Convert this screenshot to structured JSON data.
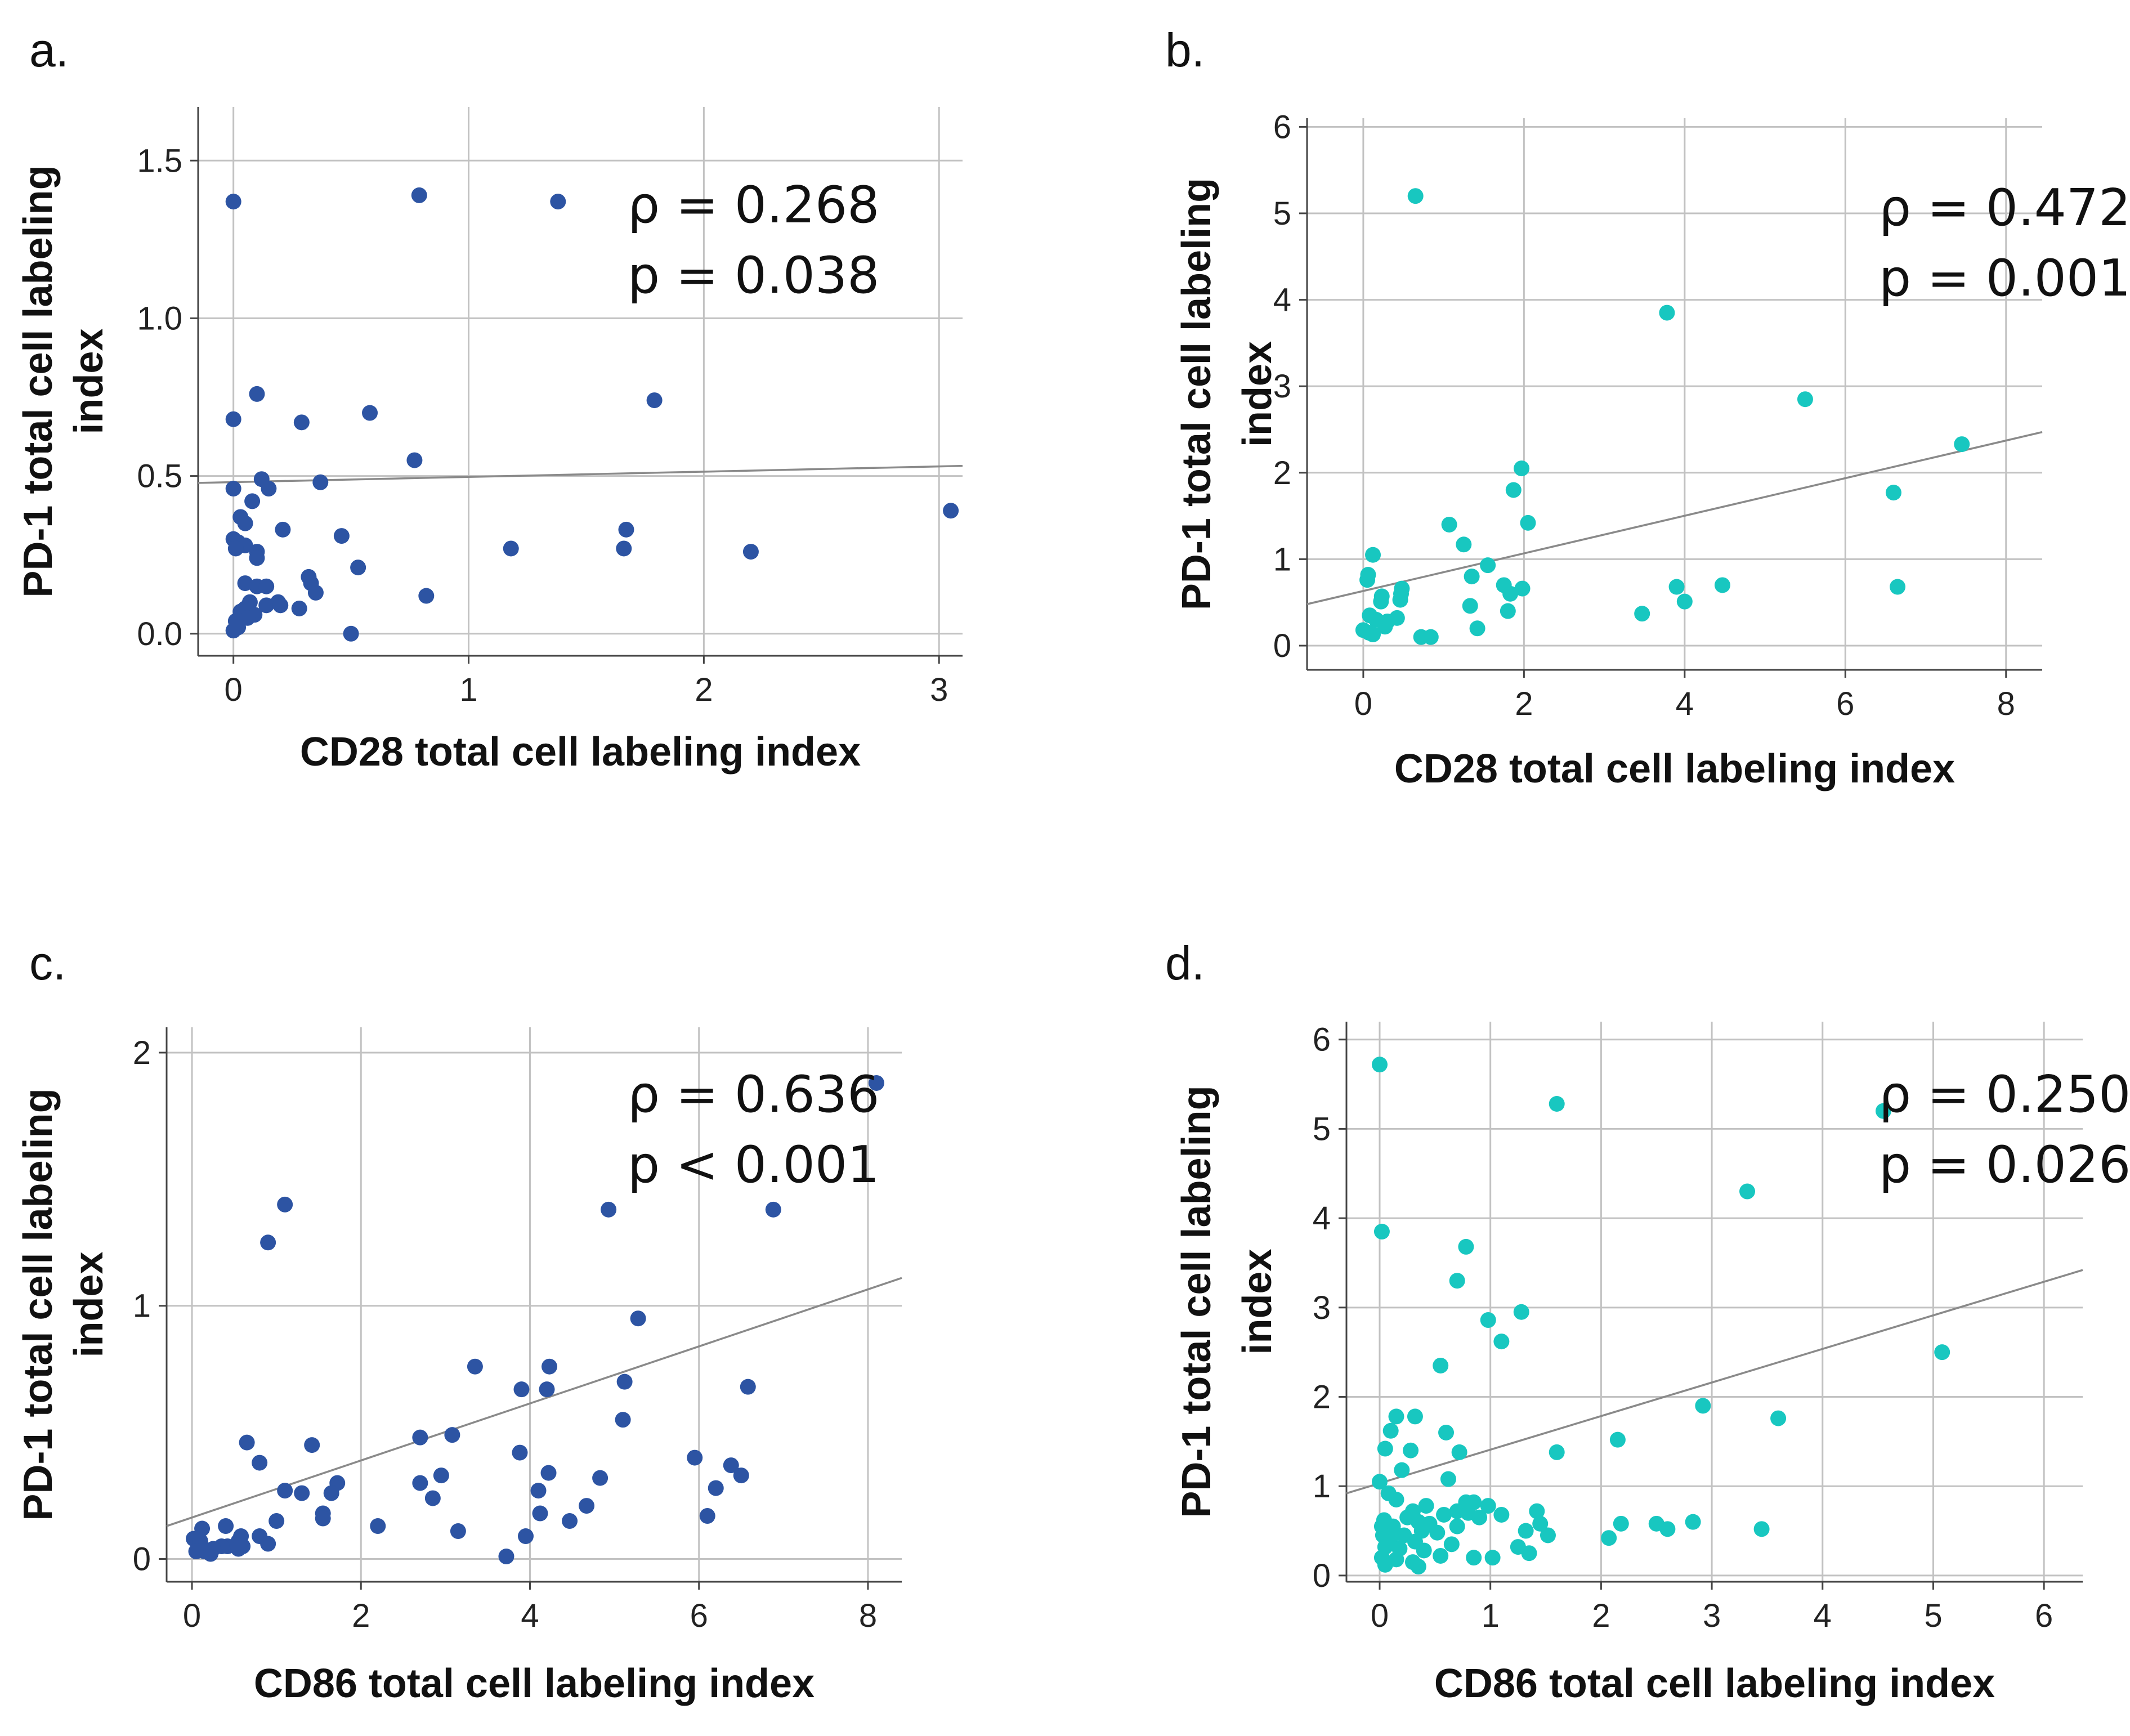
{
  "chart_data": [
    {
      "type": "scatter",
      "panel": "a.",
      "xlabel": "CD28 total cell labeling index",
      "ylabel_lines": [
        "PD-1 total cell labeling",
        "index"
      ],
      "xlim": [
        -0.15,
        3.1
      ],
      "ylim": [
        -0.07,
        1.67
      ],
      "xticks": [
        0,
        1,
        2,
        3
      ],
      "yticks": [
        0.0,
        0.5,
        1.0,
        1.5
      ],
      "ytick_labels": [
        "0.0",
        "0.5",
        "1.0",
        "1.5"
      ],
      "color": "#2d54a3",
      "stats": [
        "ρ = 0.268",
        "p = 0.038"
      ],
      "fit": {
        "x": [
          -0.15,
          3.1
        ],
        "y": [
          0.478,
          0.532
        ]
      },
      "points": [
        {
          "x": 0.0,
          "y": 1.37
        },
        {
          "x": 0.79,
          "y": 1.39
        },
        {
          "x": 1.38,
          "y": 1.37
        },
        {
          "x": 0.1,
          "y": 0.76
        },
        {
          "x": 1.79,
          "y": 0.74
        },
        {
          "x": 0.58,
          "y": 0.7
        },
        {
          "x": 0.0,
          "y": 0.68
        },
        {
          "x": 0.29,
          "y": 0.67
        },
        {
          "x": 0.77,
          "y": 0.55
        },
        {
          "x": 0.12,
          "y": 0.49
        },
        {
          "x": 0.37,
          "y": 0.48
        },
        {
          "x": 0.15,
          "y": 0.46
        },
        {
          "x": 0.0,
          "y": 0.46
        },
        {
          "x": 0.08,
          "y": 0.42
        },
        {
          "x": 3.05,
          "y": 0.39
        },
        {
          "x": 0.03,
          "y": 0.37
        },
        {
          "x": 0.05,
          "y": 0.35
        },
        {
          "x": 0.21,
          "y": 0.33
        },
        {
          "x": 1.67,
          "y": 0.33
        },
        {
          "x": 0.46,
          "y": 0.31
        },
        {
          "x": 0.0,
          "y": 0.3
        },
        {
          "x": 0.02,
          "y": 0.29
        },
        {
          "x": 0.05,
          "y": 0.28
        },
        {
          "x": 0.01,
          "y": 0.27
        },
        {
          "x": 1.18,
          "y": 0.27
        },
        {
          "x": 1.66,
          "y": 0.27
        },
        {
          "x": 0.1,
          "y": 0.26
        },
        {
          "x": 2.2,
          "y": 0.26
        },
        {
          "x": 0.1,
          "y": 0.24
        },
        {
          "x": 0.53,
          "y": 0.21
        },
        {
          "x": 0.32,
          "y": 0.18
        },
        {
          "x": 0.33,
          "y": 0.16
        },
        {
          "x": 0.05,
          "y": 0.16
        },
        {
          "x": 0.1,
          "y": 0.15
        },
        {
          "x": 0.14,
          "y": 0.15
        },
        {
          "x": 0.35,
          "y": 0.13
        },
        {
          "x": 0.82,
          "y": 0.12
        },
        {
          "x": 0.07,
          "y": 0.1
        },
        {
          "x": 0.19,
          "y": 0.1
        },
        {
          "x": 0.14,
          "y": 0.09
        },
        {
          "x": 0.2,
          "y": 0.09
        },
        {
          "x": 0.28,
          "y": 0.08
        },
        {
          "x": 0.05,
          "y": 0.08
        },
        {
          "x": 0.03,
          "y": 0.07
        },
        {
          "x": 0.09,
          "y": 0.06
        },
        {
          "x": 0.06,
          "y": 0.05
        },
        {
          "x": 0.01,
          "y": 0.04
        },
        {
          "x": 0.02,
          "y": 0.02
        },
        {
          "x": 0.0,
          "y": 0.01
        },
        {
          "x": 0.5,
          "y": 0.0
        }
      ]
    },
    {
      "type": "scatter",
      "panel": "b.",
      "xlabel": "CD28 total cell labeling index",
      "ylabel_lines": [
        "PD-1 total cell labeling",
        "index"
      ],
      "xlim": [
        -0.7,
        8.45
      ],
      "ylim": [
        -0.28,
        6.1
      ],
      "xticks": [
        0,
        2,
        4,
        6,
        8
      ],
      "yticks": [
        0,
        1,
        2,
        3,
        4,
        5,
        6
      ],
      "ytick_labels": [
        "0",
        "1",
        "2",
        "3",
        "4",
        "5",
        "6"
      ],
      "color": "#18c7c0",
      "stats": [
        "ρ = 0.472",
        "p = 0.001"
      ],
      "fit": {
        "x": [
          -0.7,
          8.45
        ],
        "y": [
          0.48,
          2.47
        ]
      },
      "points": [
        {
          "x": 0.65,
          "y": 5.2
        },
        {
          "x": 3.78,
          "y": 3.85
        },
        {
          "x": 5.5,
          "y": 2.85
        },
        {
          "x": 7.45,
          "y": 2.33
        },
        {
          "x": 1.97,
          "y": 2.05
        },
        {
          "x": 1.87,
          "y": 1.8
        },
        {
          "x": 6.6,
          "y": 1.77
        },
        {
          "x": 2.05,
          "y": 1.42
        },
        {
          "x": 1.07,
          "y": 1.4
        },
        {
          "x": 1.25,
          "y": 1.17
        },
        {
          "x": 0.12,
          "y": 1.05
        },
        {
          "x": 1.55,
          "y": 0.93
        },
        {
          "x": 0.06,
          "y": 0.82
        },
        {
          "x": 0.05,
          "y": 0.76
        },
        {
          "x": 1.35,
          "y": 0.8
        },
        {
          "x": 4.47,
          "y": 0.7
        },
        {
          "x": 1.75,
          "y": 0.7
        },
        {
          "x": 3.9,
          "y": 0.68
        },
        {
          "x": 6.65,
          "y": 0.68
        },
        {
          "x": 0.48,
          "y": 0.66
        },
        {
          "x": 1.98,
          "y": 0.66
        },
        {
          "x": 0.47,
          "y": 0.6
        },
        {
          "x": 1.83,
          "y": 0.6
        },
        {
          "x": 0.23,
          "y": 0.57
        },
        {
          "x": 0.46,
          "y": 0.53
        },
        {
          "x": 0.22,
          "y": 0.51
        },
        {
          "x": 4.0,
          "y": 0.51
        },
        {
          "x": 1.33,
          "y": 0.46
        },
        {
          "x": 1.8,
          "y": 0.4
        },
        {
          "x": 3.47,
          "y": 0.37
        },
        {
          "x": 0.08,
          "y": 0.35
        },
        {
          "x": 0.42,
          "y": 0.32
        },
        {
          "x": 0.16,
          "y": 0.3
        },
        {
          "x": 0.3,
          "y": 0.28
        },
        {
          "x": 0.27,
          "y": 0.22
        },
        {
          "x": 1.42,
          "y": 0.2
        },
        {
          "x": 0.0,
          "y": 0.18
        },
        {
          "x": 0.07,
          "y": 0.15
        },
        {
          "x": 0.12,
          "y": 0.13
        },
        {
          "x": 0.72,
          "y": 0.1
        },
        {
          "x": 0.84,
          "y": 0.1
        }
      ]
    },
    {
      "type": "scatter",
      "panel": "c.",
      "xlabel": "CD86 total cell labeling index",
      "ylabel_lines": [
        "PD-1 total cell labeling",
        "index"
      ],
      "xlim": [
        -0.3,
        8.4
      ],
      "ylim": [
        -0.09,
        2.1
      ],
      "xticks": [
        0,
        2,
        4,
        6,
        8
      ],
      "yticks": [
        0,
        1,
        2
      ],
      "ytick_labels": [
        "0",
        "1",
        "2"
      ],
      "color": "#2d54a3",
      "stats": [
        "ρ = 0.636",
        "p < 0.001"
      ],
      "fit": {
        "x": [
          -0.3,
          8.4
        ],
        "y": [
          0.13,
          1.11
        ]
      },
      "points": [
        {
          "x": 8.1,
          "y": 1.88
        },
        {
          "x": 1.1,
          "y": 1.4
        },
        {
          "x": 4.93,
          "y": 1.38
        },
        {
          "x": 6.88,
          "y": 1.38
        },
        {
          "x": 0.9,
          "y": 1.25
        },
        {
          "x": 5.28,
          "y": 0.95
        },
        {
          "x": 3.35,
          "y": 0.76
        },
        {
          "x": 4.23,
          "y": 0.76
        },
        {
          "x": 5.12,
          "y": 0.7
        },
        {
          "x": 3.9,
          "y": 0.67
        },
        {
          "x": 4.2,
          "y": 0.67
        },
        {
          "x": 6.58,
          "y": 0.68
        },
        {
          "x": 5.1,
          "y": 0.55
        },
        {
          "x": 3.08,
          "y": 0.49
        },
        {
          "x": 2.7,
          "y": 0.48
        },
        {
          "x": 0.65,
          "y": 0.46
        },
        {
          "x": 1.42,
          "y": 0.45
        },
        {
          "x": 3.88,
          "y": 0.42
        },
        {
          "x": 5.95,
          "y": 0.4
        },
        {
          "x": 0.8,
          "y": 0.38
        },
        {
          "x": 6.38,
          "y": 0.37
        },
        {
          "x": 4.22,
          "y": 0.34
        },
        {
          "x": 6.5,
          "y": 0.33
        },
        {
          "x": 2.95,
          "y": 0.33
        },
        {
          "x": 4.83,
          "y": 0.32
        },
        {
          "x": 1.72,
          "y": 0.3
        },
        {
          "x": 2.7,
          "y": 0.3
        },
        {
          "x": 6.2,
          "y": 0.28
        },
        {
          "x": 1.1,
          "y": 0.27
        },
        {
          "x": 1.3,
          "y": 0.26
        },
        {
          "x": 4.1,
          "y": 0.27
        },
        {
          "x": 1.65,
          "y": 0.26
        },
        {
          "x": 2.85,
          "y": 0.24
        },
        {
          "x": 4.67,
          "y": 0.21
        },
        {
          "x": 1.55,
          "y": 0.18
        },
        {
          "x": 4.12,
          "y": 0.18
        },
        {
          "x": 6.1,
          "y": 0.17
        },
        {
          "x": 1.55,
          "y": 0.16
        },
        {
          "x": 1.0,
          "y": 0.15
        },
        {
          "x": 4.47,
          "y": 0.15
        },
        {
          "x": 0.4,
          "y": 0.13
        },
        {
          "x": 2.2,
          "y": 0.13
        },
        {
          "x": 0.12,
          "y": 0.12
        },
        {
          "x": 3.15,
          "y": 0.11
        },
        {
          "x": 0.58,
          "y": 0.09
        },
        {
          "x": 3.95,
          "y": 0.09
        },
        {
          "x": 0.8,
          "y": 0.09
        },
        {
          "x": 0.02,
          "y": 0.08
        },
        {
          "x": 0.55,
          "y": 0.07
        },
        {
          "x": 0.1,
          "y": 0.07
        },
        {
          "x": 0.9,
          "y": 0.06
        },
        {
          "x": 0.42,
          "y": 0.05
        },
        {
          "x": 0.6,
          "y": 0.05
        },
        {
          "x": 0.35,
          "y": 0.05
        },
        {
          "x": 0.25,
          "y": 0.04
        },
        {
          "x": 0.55,
          "y": 0.04
        },
        {
          "x": 0.15,
          "y": 0.03
        },
        {
          "x": 0.05,
          "y": 0.03
        },
        {
          "x": 0.22,
          "y": 0.02
        },
        {
          "x": 3.72,
          "y": 0.01
        }
      ]
    },
    {
      "type": "scatter",
      "panel": "d.",
      "xlabel": "CD86 total cell labeling index",
      "ylabel_lines": [
        "PD-1 total cell labeling",
        "index"
      ],
      "xlim": [
        -0.3,
        6.35
      ],
      "ylim": [
        -0.07,
        6.2
      ],
      "xticks": [
        0,
        1,
        2,
        3,
        4,
        5,
        6
      ],
      "yticks": [
        0,
        1,
        2,
        3,
        4,
        5,
        6
      ],
      "ytick_labels": [
        "0",
        "1",
        "2",
        "3",
        "4",
        "5",
        "6"
      ],
      "color": "#18c7c0",
      "stats": [
        "ρ = 0.250",
        "p = 0.026"
      ],
      "fit": {
        "x": [
          -0.3,
          6.35
        ],
        "y": [
          0.92,
          3.42
        ]
      },
      "points": [
        {
          "x": 0.0,
          "y": 5.72
        },
        {
          "x": 1.6,
          "y": 5.28
        },
        {
          "x": 4.55,
          "y": 5.2
        },
        {
          "x": 3.32,
          "y": 4.3
        },
        {
          "x": 0.02,
          "y": 3.85
        },
        {
          "x": 0.78,
          "y": 3.68
        },
        {
          "x": 0.7,
          "y": 3.3
        },
        {
          "x": 1.28,
          "y": 2.95
        },
        {
          "x": 0.98,
          "y": 2.86
        },
        {
          "x": 1.1,
          "y": 2.62
        },
        {
          "x": 5.08,
          "y": 2.5
        },
        {
          "x": 0.55,
          "y": 2.35
        },
        {
          "x": 2.92,
          "y": 1.9
        },
        {
          "x": 0.15,
          "y": 1.78
        },
        {
          "x": 0.32,
          "y": 1.78
        },
        {
          "x": 3.6,
          "y": 1.76
        },
        {
          "x": 0.1,
          "y": 1.62
        },
        {
          "x": 0.6,
          "y": 1.6
        },
        {
          "x": 2.15,
          "y": 1.52
        },
        {
          "x": 0.05,
          "y": 1.42
        },
        {
          "x": 0.28,
          "y": 1.4
        },
        {
          "x": 0.72,
          "y": 1.38
        },
        {
          "x": 1.6,
          "y": 1.38
        },
        {
          "x": 0.2,
          "y": 1.18
        },
        {
          "x": 0.62,
          "y": 1.08
        },
        {
          "x": 0.0,
          "y": 1.05
        },
        {
          "x": 0.08,
          "y": 0.92
        },
        {
          "x": 0.15,
          "y": 0.85
        },
        {
          "x": 0.42,
          "y": 0.78
        },
        {
          "x": 0.78,
          "y": 0.82
        },
        {
          "x": 0.85,
          "y": 0.82
        },
        {
          "x": 0.98,
          "y": 0.78
        },
        {
          "x": 0.7,
          "y": 0.72
        },
        {
          "x": 0.3,
          "y": 0.72
        },
        {
          "x": 1.42,
          "y": 0.72
        },
        {
          "x": 0.8,
          "y": 0.7
        },
        {
          "x": 0.58,
          "y": 0.68
        },
        {
          "x": 1.1,
          "y": 0.68
        },
        {
          "x": 0.25,
          "y": 0.65
        },
        {
          "x": 0.9,
          "y": 0.65
        },
        {
          "x": 0.04,
          "y": 0.62
        },
        {
          "x": 0.35,
          "y": 0.6
        },
        {
          "x": 2.83,
          "y": 0.6
        },
        {
          "x": 0.45,
          "y": 0.58
        },
        {
          "x": 1.45,
          "y": 0.58
        },
        {
          "x": 2.18,
          "y": 0.58
        },
        {
          "x": 2.5,
          "y": 0.58
        },
        {
          "x": 0.02,
          "y": 0.55
        },
        {
          "x": 0.12,
          "y": 0.55
        },
        {
          "x": 0.7,
          "y": 0.55
        },
        {
          "x": 2.6,
          "y": 0.52
        },
        {
          "x": 0.38,
          "y": 0.5
        },
        {
          "x": 3.45,
          "y": 0.52
        },
        {
          "x": 0.52,
          "y": 0.48
        },
        {
          "x": 1.32,
          "y": 0.5
        },
        {
          "x": 0.03,
          "y": 0.45
        },
        {
          "x": 0.22,
          "y": 0.45
        },
        {
          "x": 1.52,
          "y": 0.45
        },
        {
          "x": 0.1,
          "y": 0.42
        },
        {
          "x": 2.07,
          "y": 0.42
        },
        {
          "x": 0.32,
          "y": 0.38
        },
        {
          "x": 0.65,
          "y": 0.35
        },
        {
          "x": 0.05,
          "y": 0.32
        },
        {
          "x": 0.18,
          "y": 0.3
        },
        {
          "x": 1.25,
          "y": 0.32
        },
        {
          "x": 0.4,
          "y": 0.28
        },
        {
          "x": 1.35,
          "y": 0.25
        },
        {
          "x": 0.55,
          "y": 0.22
        },
        {
          "x": 0.02,
          "y": 0.2
        },
        {
          "x": 0.15,
          "y": 0.18
        },
        {
          "x": 1.02,
          "y": 0.2
        },
        {
          "x": 0.85,
          "y": 0.2
        },
        {
          "x": 0.3,
          "y": 0.15
        },
        {
          "x": 0.05,
          "y": 0.12
        },
        {
          "x": 0.35,
          "y": 0.1
        }
      ]
    }
  ]
}
